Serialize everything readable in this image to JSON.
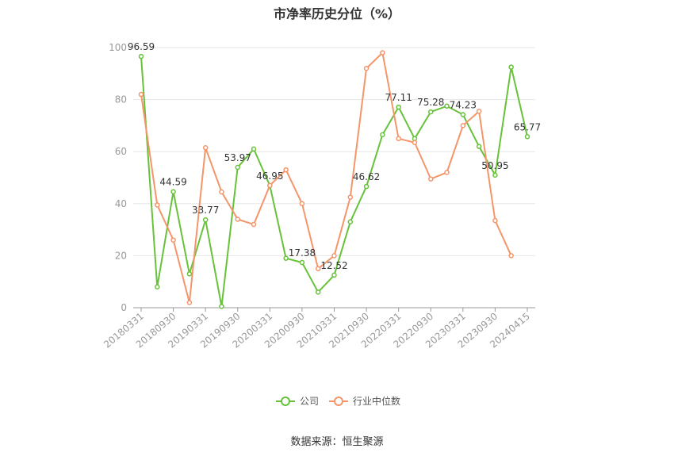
{
  "title": "市净率历史分位（%）",
  "source": "数据来源：恒生聚源",
  "chart_data": {
    "type": "line",
    "title": "市净率历史分位（%）",
    "ylim": [
      0,
      100
    ],
    "yticks": [
      0,
      20,
      40,
      60,
      80,
      100
    ],
    "x_tick_labels": [
      "20180331",
      "20180930",
      "20190331",
      "20190930",
      "20200331",
      "20200930",
      "20210331",
      "20210930",
      "20220331",
      "20220930",
      "20230331",
      "20230930",
      "20240415"
    ],
    "x": [
      "20180331",
      "20180630",
      "20180930",
      "20181231",
      "20190331",
      "20190630",
      "20190930",
      "20191231",
      "20200331",
      "20200630",
      "20200930",
      "20201231",
      "20210331",
      "20210630",
      "20210930",
      "20211231",
      "20220331",
      "20220630",
      "20220930",
      "20221231",
      "20230331",
      "20230630",
      "20230930",
      "20231231",
      "20240415"
    ],
    "series": [
      {
        "name": "公司",
        "color": "#67c23a",
        "values": [
          96.59,
          8.0,
          44.59,
          13.0,
          33.77,
          0.5,
          53.97,
          61.0,
          46.95,
          19.0,
          17.38,
          6.0,
          12.52,
          33.0,
          46.62,
          66.5,
          77.11,
          65.0,
          75.28,
          77.5,
          74.23,
          62.0,
          50.95,
          92.5,
          65.77
        ],
        "labels": {
          "0": "96.59",
          "2": "44.59",
          "4": "33.77",
          "6": "53.97",
          "8": "46.95",
          "10": "17.38",
          "12": "12.52",
          "14": "46.62",
          "16": "77.11",
          "18": "75.28",
          "20": "74.23",
          "22": "50.95",
          "24": "65.77"
        }
      },
      {
        "name": "行业中位数",
        "color": "#f4956a",
        "values": [
          82.0,
          39.5,
          26.0,
          2.0,
          61.5,
          44.5,
          34.0,
          32.0,
          47.0,
          53.0,
          40.0,
          15.0,
          20.0,
          42.5,
          92.0,
          98.0,
          65.0,
          63.5,
          49.5,
          52.0,
          70.0,
          75.5,
          33.5,
          20.0,
          null
        ]
      }
    ],
    "legend": "bottom-center",
    "grid": true
  }
}
